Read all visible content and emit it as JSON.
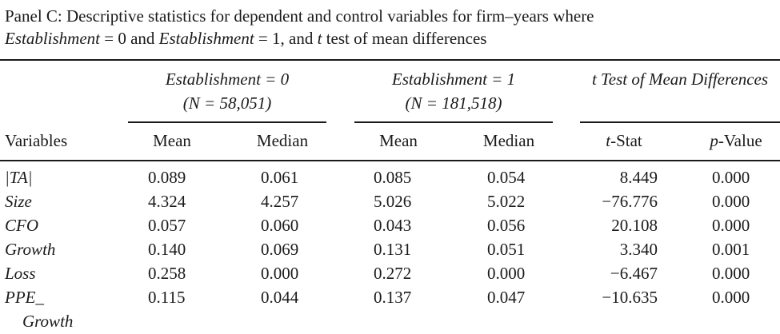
{
  "caption": {
    "line1": "Panel C: Descriptive statistics for dependent and control variables for firm–years where",
    "line2_var_a": "Establishment",
    "line2_eq_a": " = 0 and ",
    "line2_var_b": "Establishment",
    "line2_eq_b": " = 1, and ",
    "line2_t": "t",
    "line2_rest": " test of mean differences"
  },
  "groups": [
    {
      "label": "Establishment = 0",
      "sublabel": "(N = 58,051)"
    },
    {
      "label": "Establishment = 1",
      "sublabel": "(N = 181,518)"
    },
    {
      "label": "t Test of Mean Differences",
      "sublabel": ""
    }
  ],
  "columns": {
    "variables": "Variables",
    "mean0": "Mean",
    "median0": "Median",
    "mean1": "Mean",
    "median1": "Median",
    "tstat_prefix": "t",
    "tstat_suffix": "-Stat",
    "pvalue_prefix": "p",
    "pvalue_suffix": "-Value"
  },
  "rows": [
    {
      "name": "|TA|",
      "mean0": "0.089",
      "median0": "0.061",
      "mean1": "0.085",
      "median1": "0.054",
      "tstat": "8.449",
      "pvalue": "0.000"
    },
    {
      "name": "Size",
      "mean0": "4.324",
      "median0": "4.257",
      "mean1": "5.026",
      "median1": "5.022",
      "tstat": "−76.776",
      "pvalue": "0.000"
    },
    {
      "name": "CFO",
      "mean0": "0.057",
      "median0": "0.060",
      "mean1": "0.043",
      "median1": "0.056",
      "tstat": "20.108",
      "pvalue": "0.000"
    },
    {
      "name": "Growth",
      "mean0": "0.140",
      "median0": "0.069",
      "mean1": "0.131",
      "median1": "0.051",
      "tstat": "3.340",
      "pvalue": "0.001"
    },
    {
      "name": "Loss",
      "mean0": "0.258",
      "median0": "0.000",
      "mean1": "0.272",
      "median1": "0.000",
      "tstat": "−6.467",
      "pvalue": "0.000"
    },
    {
      "name": "PPE_",
      "name_cont": "Growth",
      "mean0": "0.115",
      "median0": "0.044",
      "mean1": "0.137",
      "median1": "0.047",
      "tstat": "−10.635",
      "pvalue": "0.000"
    }
  ]
}
